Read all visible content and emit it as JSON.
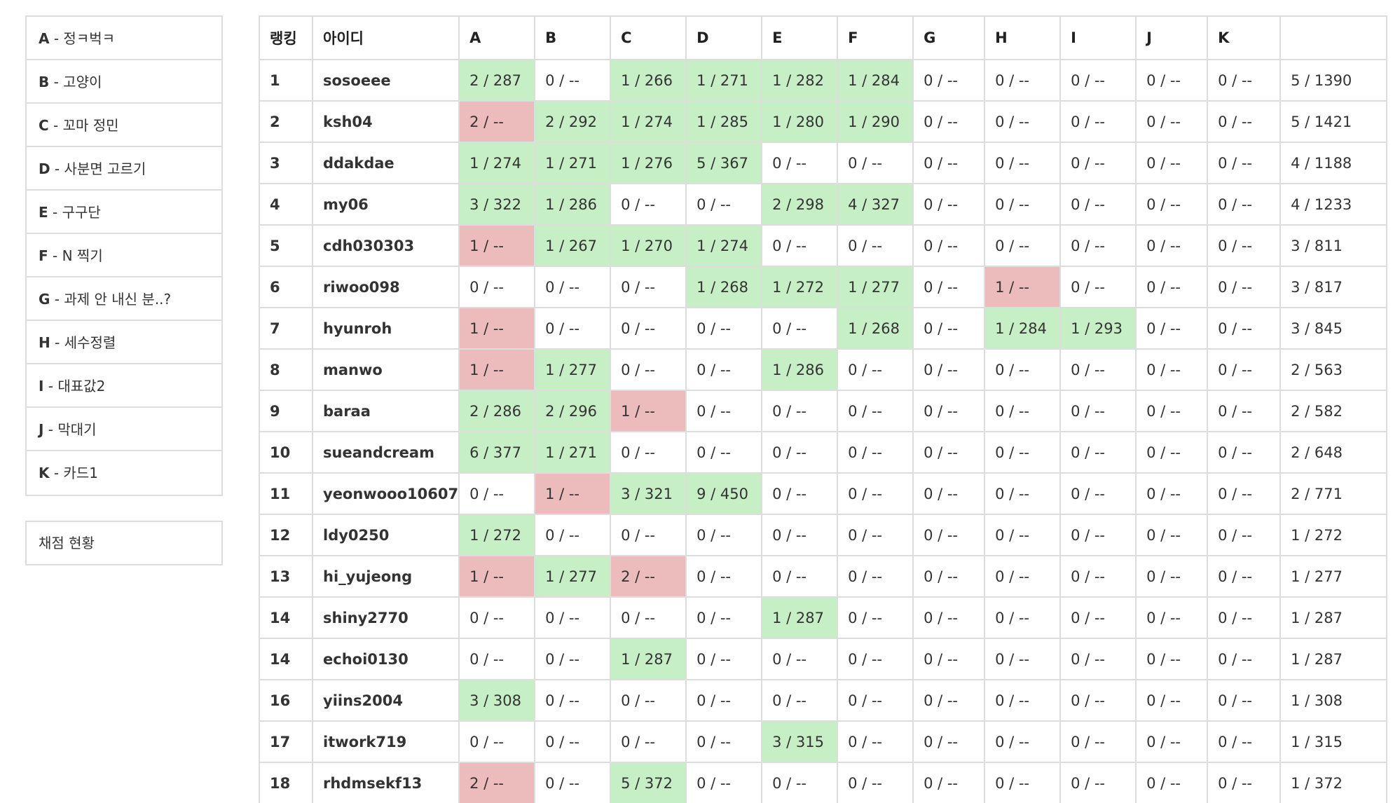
{
  "sidebar": {
    "problems": [
      {
        "letter": "A",
        "title": " - 정ㅋ벅ㅋ"
      },
      {
        "letter": "B",
        "title": " - 고양이"
      },
      {
        "letter": "C",
        "title": " - 꼬마 정민"
      },
      {
        "letter": "D",
        "title": " - 사분면 고르기"
      },
      {
        "letter": "E",
        "title": " - 구구단"
      },
      {
        "letter": "F",
        "title": " - N 찍기"
      },
      {
        "letter": "G",
        "title": " - 과제 안 내신 분..?"
      },
      {
        "letter": "H",
        "title": " - 세수정렬"
      },
      {
        "letter": "I",
        "title": " - 대표값2"
      },
      {
        "letter": "J",
        "title": " - 막대기"
      },
      {
        "letter": "K",
        "title": " - 카드1"
      }
    ],
    "grading_label": "채점 현황"
  },
  "scoreboard": {
    "headers": [
      "랭킹",
      "아이디",
      "A",
      "B",
      "C",
      "D",
      "E",
      "F",
      "G",
      "H",
      "I",
      "J",
      "K",
      ""
    ],
    "status_colors": {
      "accepted": "#c6efc6",
      "wrong": "#ecbcbc"
    },
    "rows": [
      {
        "rank": "1",
        "id": "sosoeee",
        "cells": [
          "2 / 287",
          "0 / --",
          "1 / 266",
          "1 / 271",
          "1 / 282",
          "1 / 284",
          "0 / --",
          "0 / --",
          "0 / --",
          "0 / --",
          "0 / --"
        ],
        "status": [
          "ac",
          "",
          "ac",
          "ac",
          "ac",
          "ac",
          "",
          "",
          "",
          "",
          ""
        ],
        "total": "5 / 1390"
      },
      {
        "rank": "2",
        "id": "ksh04",
        "cells": [
          "2 / --",
          "2 / 292",
          "1 / 274",
          "1 / 285",
          "1 / 280",
          "1 / 290",
          "0 / --",
          "0 / --",
          "0 / --",
          "0 / --",
          "0 / --"
        ],
        "status": [
          "wa",
          "ac",
          "ac",
          "ac",
          "ac",
          "ac",
          "",
          "",
          "",
          "",
          ""
        ],
        "total": "5 / 1421"
      },
      {
        "rank": "3",
        "id": "ddakdae",
        "cells": [
          "1 / 274",
          "1 / 271",
          "1 / 276",
          "5 / 367",
          "0 / --",
          "0 / --",
          "0 / --",
          "0 / --",
          "0 / --",
          "0 / --",
          "0 / --"
        ],
        "status": [
          "ac",
          "ac",
          "ac",
          "ac",
          "",
          "",
          "",
          "",
          "",
          "",
          ""
        ],
        "total": "4 / 1188"
      },
      {
        "rank": "4",
        "id": "my06",
        "cells": [
          "3 / 322",
          "1 / 286",
          "0 / --",
          "0 / --",
          "2 / 298",
          "4 / 327",
          "0 / --",
          "0 / --",
          "0 / --",
          "0 / --",
          "0 / --"
        ],
        "status": [
          "ac",
          "ac",
          "",
          "",
          "ac",
          "ac",
          "",
          "",
          "",
          "",
          ""
        ],
        "total": "4 / 1233"
      },
      {
        "rank": "5",
        "id": "cdh030303",
        "cells": [
          "1 / --",
          "1 / 267",
          "1 / 270",
          "1 / 274",
          "0 / --",
          "0 / --",
          "0 / --",
          "0 / --",
          "0 / --",
          "0 / --",
          "0 / --"
        ],
        "status": [
          "wa",
          "ac",
          "ac",
          "ac",
          "",
          "",
          "",
          "",
          "",
          "",
          ""
        ],
        "total": "3 / 811"
      },
      {
        "rank": "6",
        "id": "riwoo098",
        "cells": [
          "0 / --",
          "0 / --",
          "0 / --",
          "1 / 268",
          "1 / 272",
          "1 / 277",
          "0 / --",
          "1 / --",
          "0 / --",
          "0 / --",
          "0 / --"
        ],
        "status": [
          "",
          "",
          "",
          "ac",
          "ac",
          "ac",
          "",
          "wa",
          "",
          "",
          ""
        ],
        "total": "3 / 817"
      },
      {
        "rank": "7",
        "id": "hyunroh",
        "cells": [
          "1 / --",
          "0 / --",
          "0 / --",
          "0 / --",
          "0 / --",
          "1 / 268",
          "0 / --",
          "1 / 284",
          "1 / 293",
          "0 / --",
          "0 / --"
        ],
        "status": [
          "wa",
          "",
          "",
          "",
          "",
          "ac",
          "",
          "ac",
          "ac",
          "",
          ""
        ],
        "total": "3 / 845"
      },
      {
        "rank": "8",
        "id": "manwo",
        "cells": [
          "1 / --",
          "1 / 277",
          "0 / --",
          "0 / --",
          "1 / 286",
          "0 / --",
          "0 / --",
          "0 / --",
          "0 / --",
          "0 / --",
          "0 / --"
        ],
        "status": [
          "wa",
          "ac",
          "",
          "",
          "ac",
          "",
          "",
          "",
          "",
          "",
          ""
        ],
        "total": "2 / 563"
      },
      {
        "rank": "9",
        "id": "baraa",
        "cells": [
          "2 / 286",
          "2 / 296",
          "1 / --",
          "0 / --",
          "0 / --",
          "0 / --",
          "0 / --",
          "0 / --",
          "0 / --",
          "0 / --",
          "0 / --"
        ],
        "status": [
          "ac",
          "ac",
          "wa",
          "",
          "",
          "",
          "",
          "",
          "",
          "",
          ""
        ],
        "total": "2 / 582"
      },
      {
        "rank": "10",
        "id": "sueandcream",
        "cells": [
          "6 / 377",
          "1 / 271",
          "0 / --",
          "0 / --",
          "0 / --",
          "0 / --",
          "0 / --",
          "0 / --",
          "0 / --",
          "0 / --",
          "0 / --"
        ],
        "status": [
          "ac",
          "ac",
          "",
          "",
          "",
          "",
          "",
          "",
          "",
          "",
          ""
        ],
        "total": "2 / 648"
      },
      {
        "rank": "11",
        "id": "yeonwooo10607",
        "cells": [
          "0 / --",
          "1 / --",
          "3 / 321",
          "9 / 450",
          "0 / --",
          "0 / --",
          "0 / --",
          "0 / --",
          "0 / --",
          "0 / --",
          "0 / --"
        ],
        "status": [
          "",
          "wa",
          "ac",
          "ac",
          "",
          "",
          "",
          "",
          "",
          "",
          ""
        ],
        "total": "2 / 771"
      },
      {
        "rank": "12",
        "id": "ldy0250",
        "cells": [
          "1 / 272",
          "0 / --",
          "0 / --",
          "0 / --",
          "0 / --",
          "0 / --",
          "0 / --",
          "0 / --",
          "0 / --",
          "0 / --",
          "0 / --"
        ],
        "status": [
          "ac",
          "",
          "",
          "",
          "",
          "",
          "",
          "",
          "",
          "",
          ""
        ],
        "total": "1 / 272"
      },
      {
        "rank": "13",
        "id": "hi_yujeong",
        "cells": [
          "1 / --",
          "1 / 277",
          "2 / --",
          "0 / --",
          "0 / --",
          "0 / --",
          "0 / --",
          "0 / --",
          "0 / --",
          "0 / --",
          "0 / --"
        ],
        "status": [
          "wa",
          "ac",
          "wa",
          "",
          "",
          "",
          "",
          "",
          "",
          "",
          ""
        ],
        "total": "1 / 277"
      },
      {
        "rank": "14",
        "id": "shiny2770",
        "cells": [
          "0 / --",
          "0 / --",
          "0 / --",
          "0 / --",
          "1 / 287",
          "0 / --",
          "0 / --",
          "0 / --",
          "0 / --",
          "0 / --",
          "0 / --"
        ],
        "status": [
          "",
          "",
          "",
          "",
          "ac",
          "",
          "",
          "",
          "",
          "",
          ""
        ],
        "total": "1 / 287"
      },
      {
        "rank": "14",
        "id": "echoi0130",
        "cells": [
          "0 / --",
          "0 / --",
          "1 / 287",
          "0 / --",
          "0 / --",
          "0 / --",
          "0 / --",
          "0 / --",
          "0 / --",
          "0 / --",
          "0 / --"
        ],
        "status": [
          "",
          "",
          "ac",
          "",
          "",
          "",
          "",
          "",
          "",
          "",
          ""
        ],
        "total": "1 / 287"
      },
      {
        "rank": "16",
        "id": "yiins2004",
        "cells": [
          "3 / 308",
          "0 / --",
          "0 / --",
          "0 / --",
          "0 / --",
          "0 / --",
          "0 / --",
          "0 / --",
          "0 / --",
          "0 / --",
          "0 / --"
        ],
        "status": [
          "ac",
          "",
          "",
          "",
          "",
          "",
          "",
          "",
          "",
          "",
          ""
        ],
        "total": "1 / 308"
      },
      {
        "rank": "17",
        "id": "itwork719",
        "cells": [
          "0 / --",
          "0 / --",
          "0 / --",
          "0 / --",
          "3 / 315",
          "0 / --",
          "0 / --",
          "0 / --",
          "0 / --",
          "0 / --",
          "0 / --"
        ],
        "status": [
          "",
          "",
          "",
          "",
          "ac",
          "",
          "",
          "",
          "",
          "",
          ""
        ],
        "total": "1 / 315"
      },
      {
        "rank": "18",
        "id": "rhdmsekf13",
        "cells": [
          "2 / --",
          "0 / --",
          "5 / 372",
          "0 / --",
          "0 / --",
          "0 / --",
          "0 / --",
          "0 / --",
          "0 / --",
          "0 / --",
          "0 / --"
        ],
        "status": [
          "wa",
          "",
          "ac",
          "",
          "",
          "",
          "",
          "",
          "",
          "",
          ""
        ],
        "total": "1 / 372"
      }
    ]
  }
}
